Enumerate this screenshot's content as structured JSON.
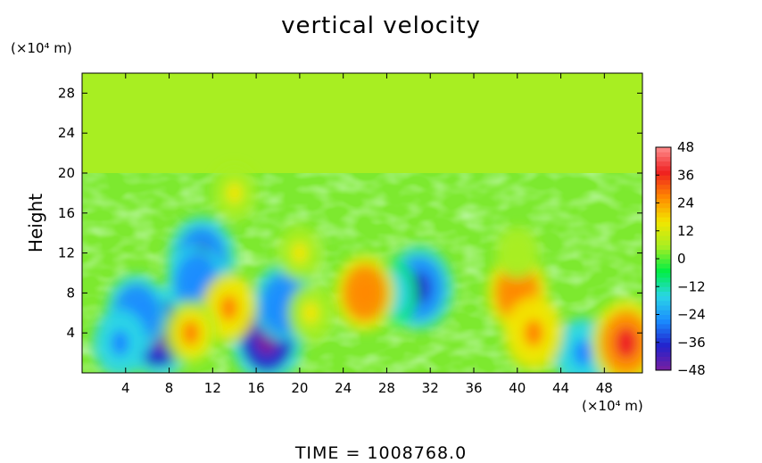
{
  "chart_data": {
    "type": "heatmap",
    "title": "vertical velocity",
    "ylabel": "Height",
    "xunit": "(×10⁴ m)",
    "yunit": "(×10⁴ m)",
    "footer": "TIME  =  1008768.0",
    "xlim": [
      0,
      51.5
    ],
    "ylim": [
      0,
      30
    ],
    "xticks": [
      4,
      8,
      12,
      16,
      20,
      24,
      28,
      32,
      36,
      40,
      44,
      48
    ],
    "yticks": [
      4,
      8,
      12,
      16,
      20,
      24,
      28
    ],
    "colorbar": {
      "min": -48,
      "max": 48,
      "ticks": [
        48,
        36,
        24,
        12,
        0,
        -12,
        -24,
        -36,
        -48
      ],
      "colors": [
        "#7a1fa0",
        "#2222cc",
        "#1a8cff",
        "#2ad6e6",
        "#00ee44",
        "#a8ee22",
        "#f2e600",
        "#ff8800",
        "#ee2020",
        "#ff8c8c"
      ]
    },
    "features": [
      {
        "x": 7,
        "y": 4,
        "value": -44
      },
      {
        "x": 5,
        "y": 6,
        "value": -32
      },
      {
        "x": 11,
        "y": 11.5,
        "value": -38
      },
      {
        "x": 10.5,
        "y": 9,
        "value": -30
      },
      {
        "x": 17,
        "y": 3.5,
        "value": -44
      },
      {
        "x": 18.5,
        "y": 7,
        "value": -32
      },
      {
        "x": 3.5,
        "y": 3,
        "value": -24
      },
      {
        "x": 31,
        "y": 8.5,
        "value": -38
      },
      {
        "x": 28.5,
        "y": 8,
        "value": -20
      },
      {
        "x": 46,
        "y": 2,
        "value": -26
      },
      {
        "x": 13.5,
        "y": 6.5,
        "value": 24
      },
      {
        "x": 10,
        "y": 4,
        "value": 22
      },
      {
        "x": 21,
        "y": 6,
        "value": 14
      },
      {
        "x": 26,
        "y": 8,
        "value": 30
      },
      {
        "x": 40,
        "y": 8,
        "value": 30
      },
      {
        "x": 41.5,
        "y": 4,
        "value": 28
      },
      {
        "x": 50,
        "y": 3,
        "value": 40
      },
      {
        "x": 20,
        "y": 12,
        "value": 12
      },
      {
        "x": 14,
        "y": 18,
        "value": 12
      },
      {
        "x": 40,
        "y": 12,
        "value": 10
      }
    ]
  }
}
